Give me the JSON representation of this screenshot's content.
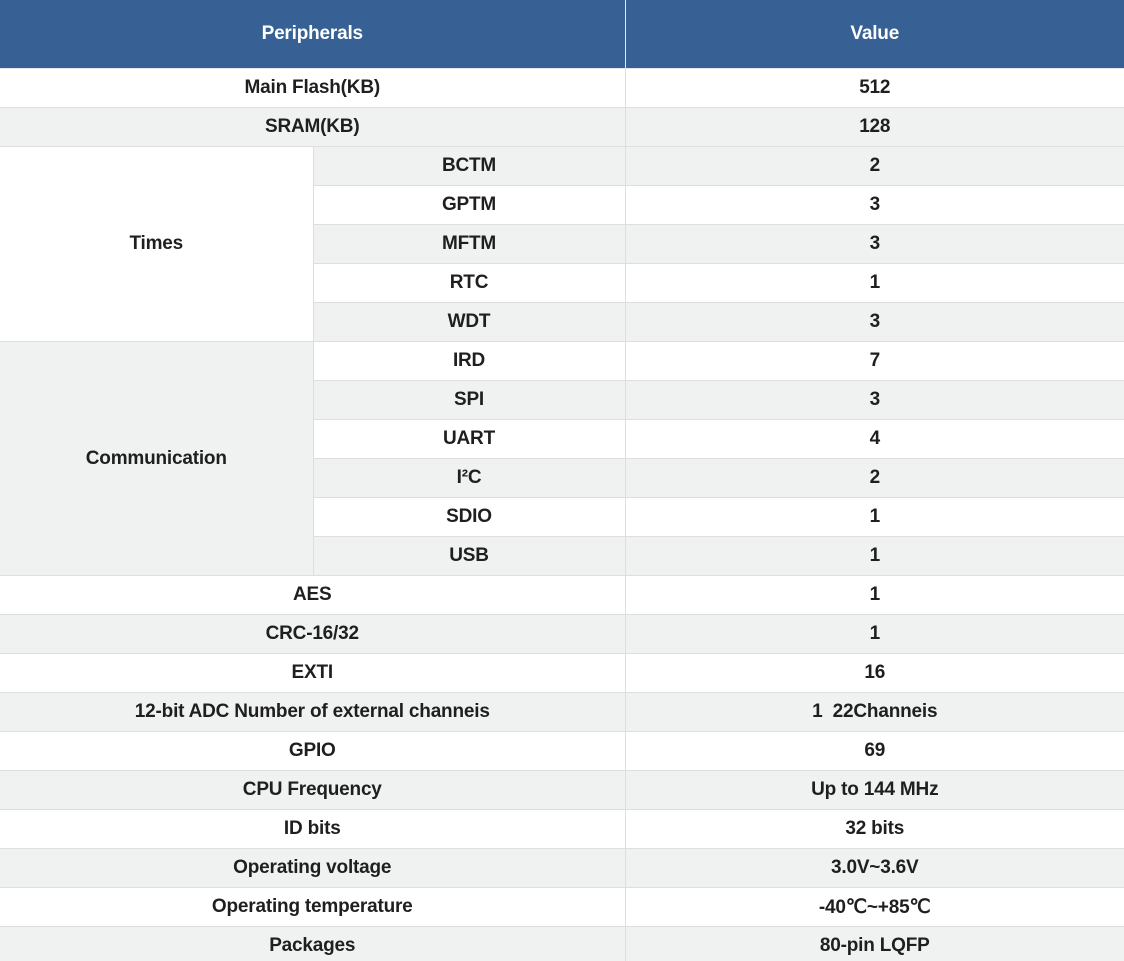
{
  "colors": {
    "header_bg": "#376194",
    "header_text": "#ffffff",
    "row_bg": "#ffffff",
    "row_alt_bg": "#f0f1f1",
    "border": "#dedede",
    "text": "#1f1f1f"
  },
  "table": {
    "header": {
      "peripherals": "Peripherals",
      "value": "Value"
    },
    "rows": [
      {
        "type": "full",
        "label": "Main Flash(KB)",
        "value": "512",
        "shade": false
      },
      {
        "type": "full",
        "label": "SRAM(KB)",
        "value": "128",
        "shade": true
      },
      {
        "type": "sub",
        "group": "Times",
        "group_rowspan": 5,
        "group_shade": false,
        "label": "BCTM",
        "value": "2",
        "shade": true
      },
      {
        "type": "sub",
        "label": "GPTM",
        "value": "3",
        "shade": false
      },
      {
        "type": "sub",
        "label": "MFTM",
        "value": "3",
        "shade": true
      },
      {
        "type": "sub",
        "label": "RTC",
        "value": "1",
        "shade": false
      },
      {
        "type": "sub",
        "label": "WDT",
        "value": "3",
        "shade": true
      },
      {
        "type": "sub",
        "group": "Communication",
        "group_rowspan": 6,
        "group_shade": true,
        "label": "IRD",
        "value": "7",
        "shade": false
      },
      {
        "type": "sub",
        "label": "SPI",
        "value": "3",
        "shade": true
      },
      {
        "type": "sub",
        "label": "UART",
        "value": "4",
        "shade": false
      },
      {
        "type": "sub",
        "label": "I²C",
        "value": "2",
        "shade": true
      },
      {
        "type": "sub",
        "label": "SDIO",
        "value": "1",
        "shade": false
      },
      {
        "type": "sub",
        "label": "USB",
        "value": "1",
        "shade": true
      },
      {
        "type": "full",
        "label": "AES",
        "value": "1",
        "shade": false
      },
      {
        "type": "full",
        "label": "CRC-16/32",
        "value": "1",
        "shade": true
      },
      {
        "type": "full",
        "label": "EXTI",
        "value": "16",
        "shade": false
      },
      {
        "type": "full",
        "label": "12-bit ADC Number of external channeis",
        "value": "1  22Channeis",
        "shade": true
      },
      {
        "type": "full",
        "label": "GPIO",
        "value": "69",
        "shade": false
      },
      {
        "type": "full",
        "label": "CPU Frequency",
        "value": "Up to 144 MHz",
        "shade": true
      },
      {
        "type": "full",
        "label": "ID bits",
        "value": "32 bits",
        "shade": false
      },
      {
        "type": "full",
        "label": "Operating voltage",
        "value": "3.0V~3.6V",
        "shade": true
      },
      {
        "type": "full",
        "label": "Operating temperature",
        "value": "-40℃~+85℃",
        "shade": false
      },
      {
        "type": "full",
        "label": "Packages",
        "value": "80-pin LQFP",
        "shade": true
      }
    ]
  }
}
